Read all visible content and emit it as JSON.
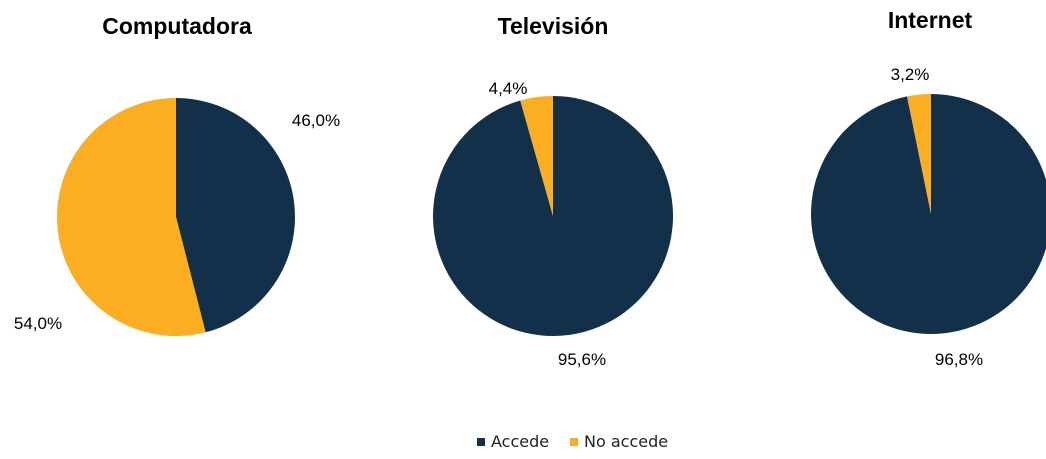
{
  "chart_data": [
    {
      "type": "pie",
      "title": "Computadora",
      "categories": [
        "Accede",
        "No accede"
      ],
      "values": [
        46.0,
        54.0
      ],
      "labels": [
        "46,0%",
        "54,0%"
      ],
      "colors": [
        "#12304a",
        "#fbae22"
      ]
    },
    {
      "type": "pie",
      "title": "Televisión",
      "categories": [
        "Accede",
        "No accede"
      ],
      "values": [
        95.6,
        4.4
      ],
      "labels": [
        "95,6%",
        "4,4%"
      ],
      "colors": [
        "#12304a",
        "#fbae22"
      ]
    },
    {
      "type": "pie",
      "title": "Internet",
      "categories": [
        "Accede",
        "No accede"
      ],
      "values": [
        96.8,
        3.2
      ],
      "labels": [
        "96,8%",
        "3,2%"
      ],
      "colors": [
        "#12304a",
        "#fbae22"
      ]
    }
  ],
  "legend": {
    "placement": "bottom-center",
    "items": [
      {
        "label": "Accede",
        "color": "#12304a"
      },
      {
        "label": "No accede",
        "color": "#fbae22"
      }
    ]
  }
}
